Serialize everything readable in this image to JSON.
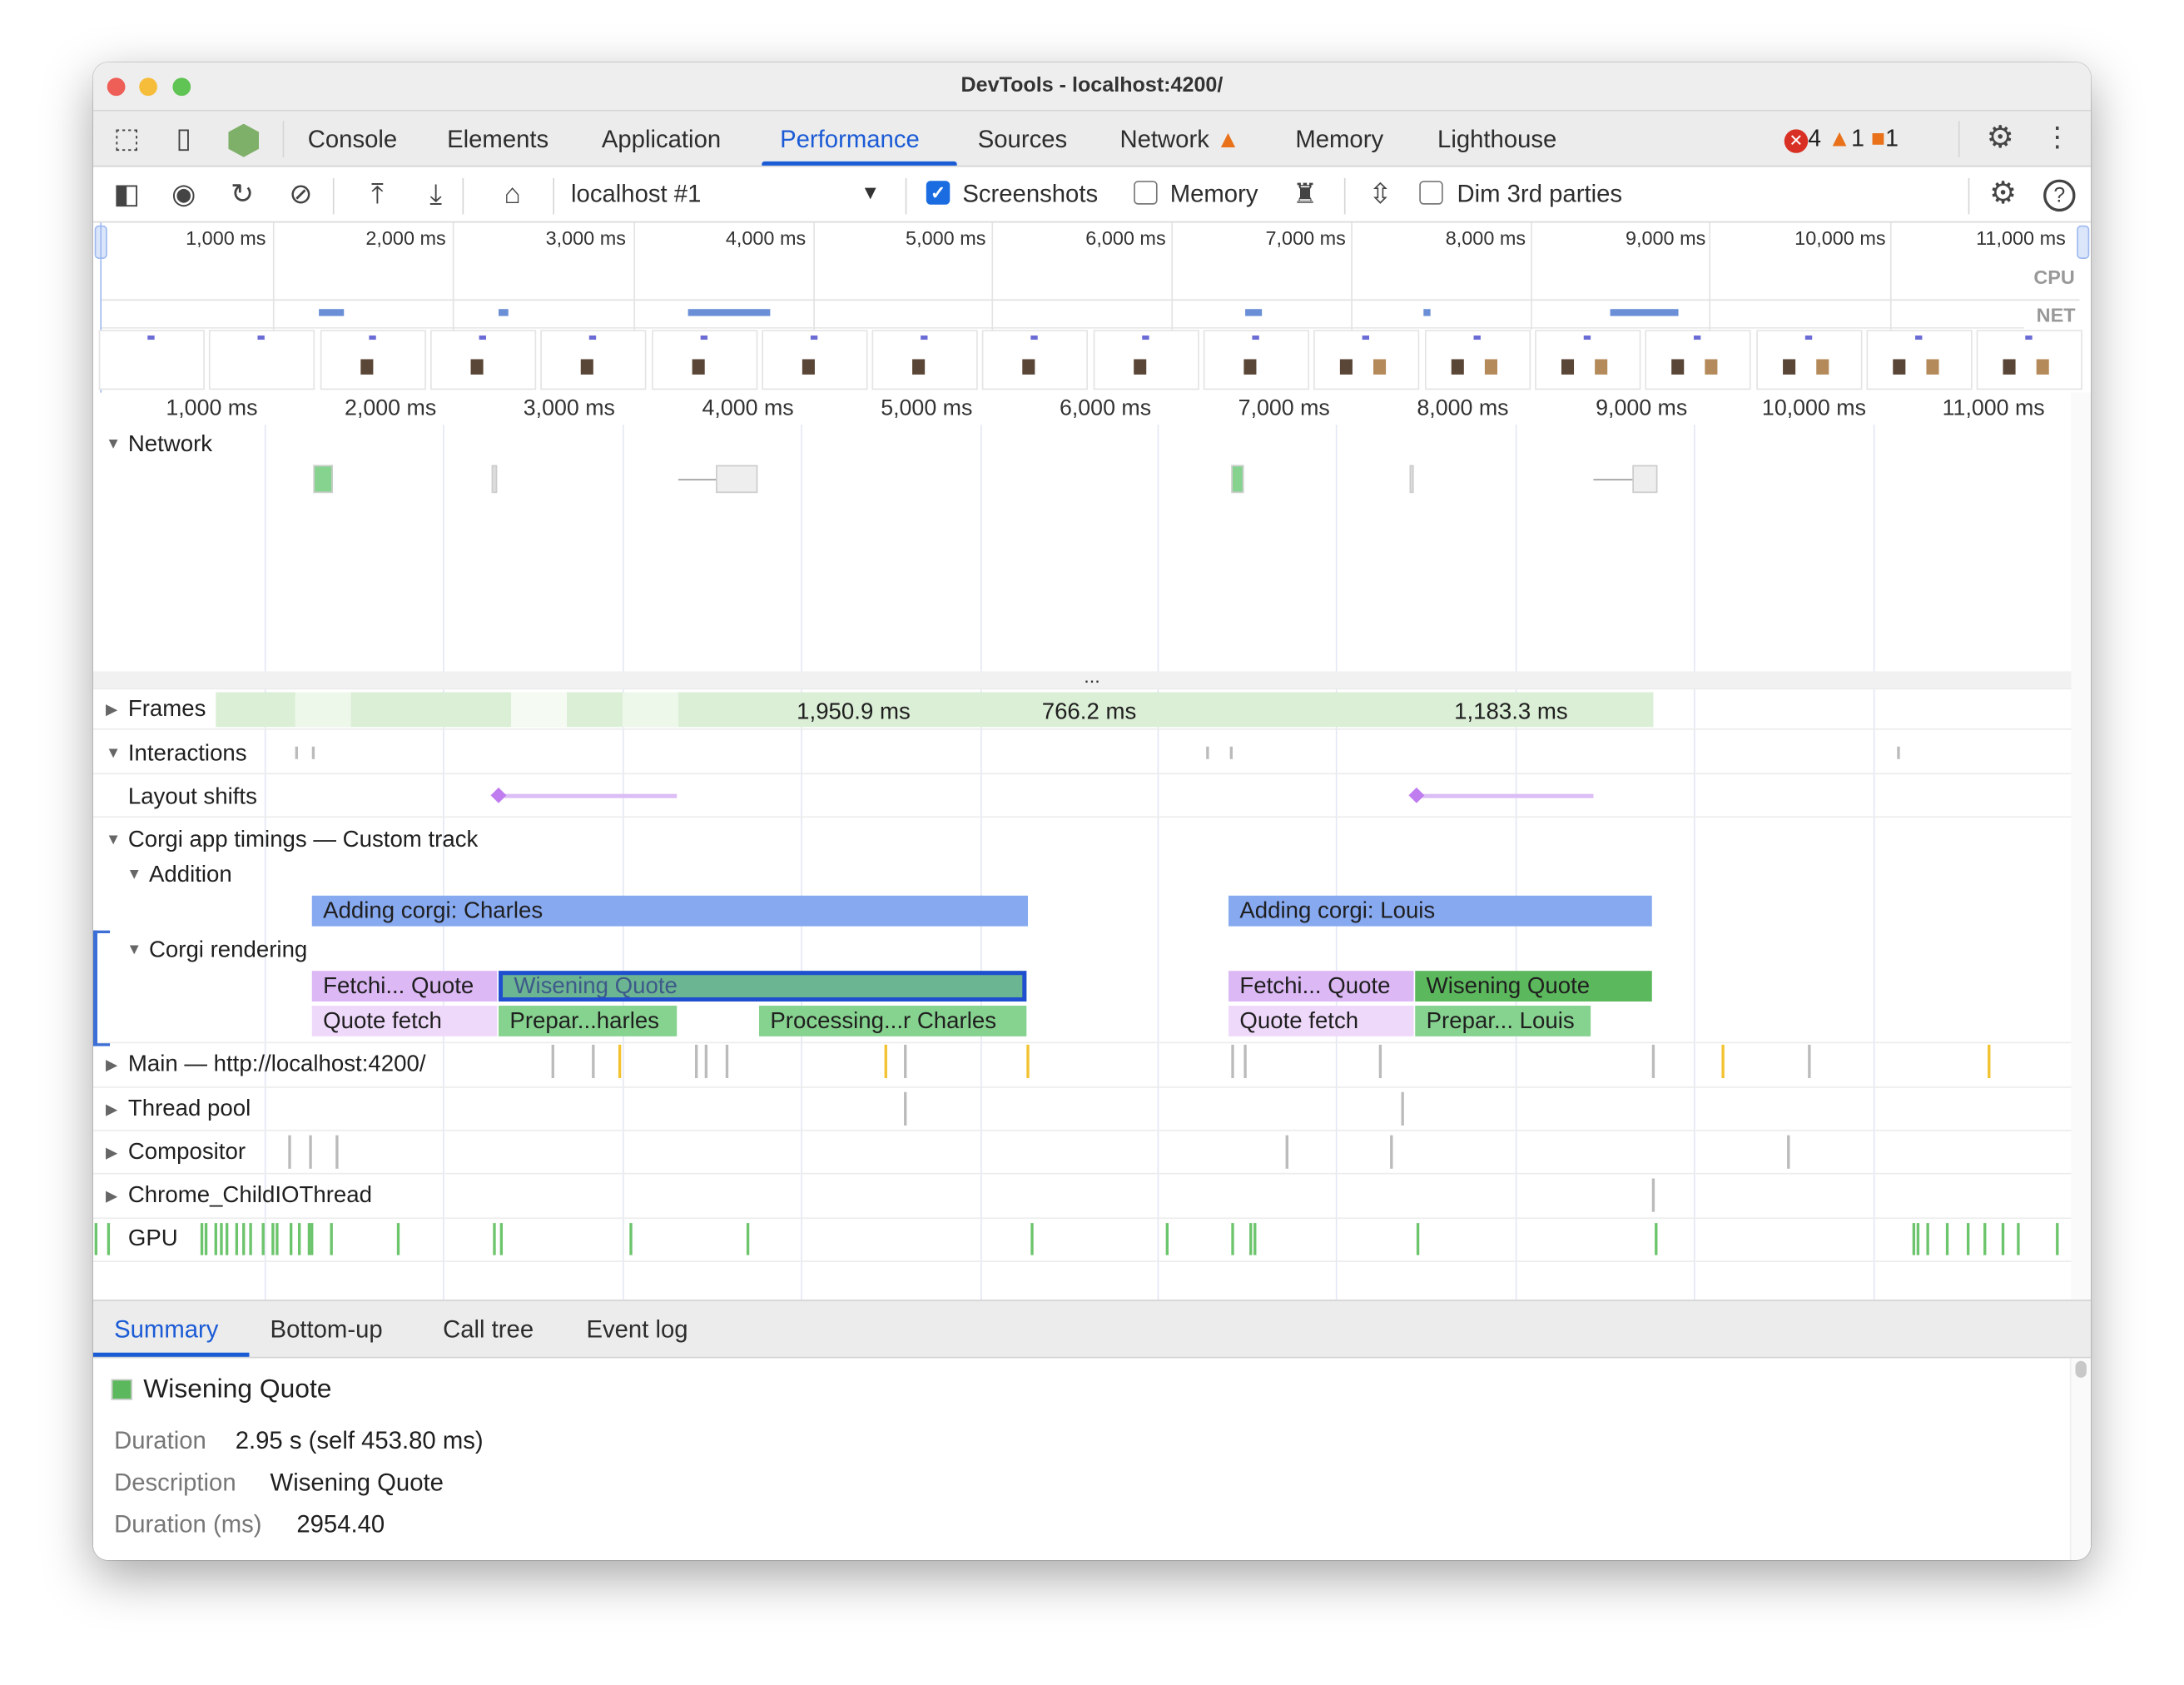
{
  "window": {
    "title": "DevTools - localhost:4200/"
  },
  "tabs": [
    {
      "label": "Console"
    },
    {
      "label": "Elements"
    },
    {
      "label": "Application"
    },
    {
      "label": "Performance",
      "active": true
    },
    {
      "label": "Sources"
    },
    {
      "label": "Network",
      "warning": true
    },
    {
      "label": "Memory"
    },
    {
      "label": "Lighthouse"
    }
  ],
  "status": {
    "errors": "4",
    "warnings": "1",
    "issues": "1"
  },
  "toolbar": {
    "target": "localhost #1",
    "screenshots_label": "Screenshots",
    "screenshots_checked": true,
    "memory_label": "Memory",
    "memory_checked": false,
    "dim_label": "Dim 3rd parties",
    "dim_checked": false
  },
  "overview": {
    "ticks": [
      "1,000 ms",
      "2,000 ms",
      "3,000 ms",
      "4,000 ms",
      "5,000 ms",
      "6,000 ms",
      "7,000 ms",
      "8,000 ms",
      "9,000 ms",
      "10,000 ms",
      "11,000 ms"
    ],
    "cpu_label": "CPU",
    "net_label": "NET"
  },
  "ruler": {
    "ticks": [
      "1,000 ms",
      "2,000 ms",
      "3,000 ms",
      "4,000 ms",
      "5,000 ms",
      "6,000 ms",
      "7,000 ms",
      "8,000 ms",
      "9,000 ms",
      "10,000 ms",
      "11,000 ms"
    ]
  },
  "tracks": {
    "network": "Network",
    "frames": "Frames",
    "frame_durations": [
      "1,950.9 ms",
      "766.2 ms",
      "1,183.3 ms"
    ],
    "interactions": "Interactions",
    "layout_shifts": "Layout shifts",
    "custom": "Corgi app timings — Custom track",
    "addition": "Addition",
    "addition_bars": [
      "Adding corgi: Charles",
      "Adding corgi: Louis"
    ],
    "rendering": "Corgi rendering",
    "rendering_bars": [
      "Fetchi... Quote",
      "Wisening Quote",
      "Quote fetch",
      "Prepar...harles",
      "Processing...r Charles",
      "Fetchi... Quote",
      "Wisening Quote",
      "Quote fetch",
      "Prepar... Louis"
    ],
    "main": "Main — http://localhost:4200/",
    "thread_pool": "Thread pool",
    "compositor": "Compositor",
    "childio": "Chrome_ChildIOThread",
    "gpu": "GPU",
    "more": "..."
  },
  "bottom_tabs": [
    {
      "label": "Summary",
      "active": true
    },
    {
      "label": "Bottom-up"
    },
    {
      "label": "Call tree"
    },
    {
      "label": "Event log"
    }
  ],
  "summary": {
    "title": "Wisening Quote",
    "color": "#5cb85c",
    "rows": [
      {
        "key": "Duration",
        "value": "2.95 s (self 453.80 ms)"
      },
      {
        "key": "Description",
        "value": "Wisening Quote"
      },
      {
        "key": "Duration (ms)",
        "value": "2954.40"
      }
    ]
  },
  "colors": {
    "accent": "#1b5bd6",
    "addition": "#87a9f0",
    "fetch": "#dcb8f5",
    "fetch_light": "#efd9fb",
    "wisening_selected": "#6cb593",
    "green": "#86d28f",
    "frames": "#dbeed6"
  }
}
